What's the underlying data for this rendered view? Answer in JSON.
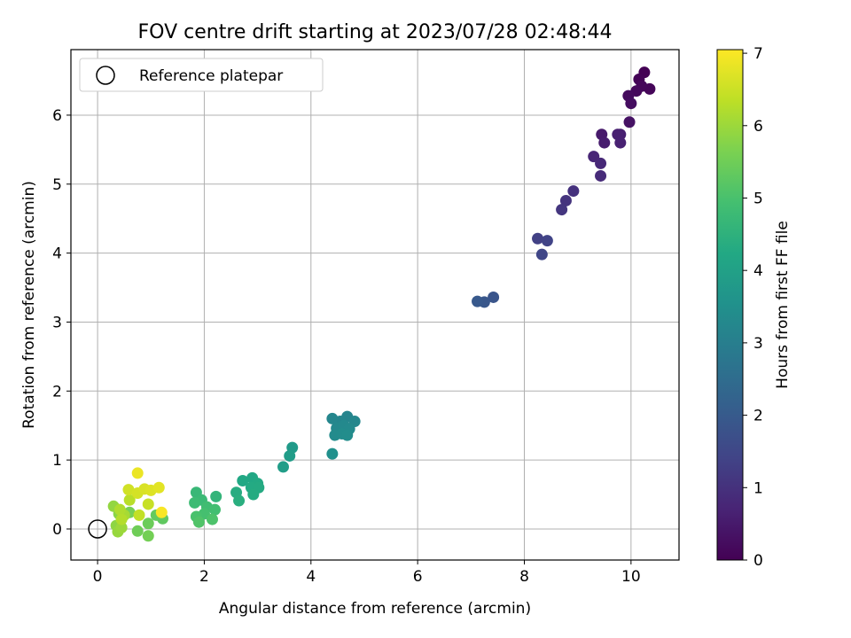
{
  "chart_data": {
    "type": "scatter",
    "title": "FOV centre drift starting at 2023/07/28 02:48:44",
    "xlabel": "Angular distance from reference (arcmin)",
    "ylabel": "Rotation from reference (arcmin)",
    "xlim": [
      -0.5,
      10.9
    ],
    "ylim": [
      -0.45,
      6.95
    ],
    "xticks": [
      0,
      2,
      4,
      6,
      8,
      10
    ],
    "yticks": [
      0,
      1,
      2,
      3,
      4,
      5,
      6
    ],
    "xtick_labels": [
      "0",
      "2",
      "4",
      "6",
      "8",
      "10"
    ],
    "ytick_labels": [
      "0",
      "1",
      "2",
      "3",
      "4",
      "5",
      "6"
    ],
    "grid": true,
    "legend": {
      "placement": "top-left",
      "entries": [
        "Reference platepar"
      ]
    },
    "reference_point": {
      "x": 0,
      "y": 0,
      "label": "Reference platepar"
    },
    "colorbar": {
      "label": "Hours from first FF file",
      "range": [
        0,
        7.05
      ],
      "ticks": [
        0,
        1,
        2,
        3,
        4,
        5,
        6,
        7
      ],
      "tick_labels": [
        "0",
        "1",
        "2",
        "3",
        "4",
        "5",
        "6",
        "7"
      ],
      "colormap": "viridis"
    },
    "series": [
      {
        "points": [
          {
            "x": 10.25,
            "y": 6.62,
            "t": 0.0
          },
          {
            "x": 10.15,
            "y": 6.52,
            "t": 0.05
          },
          {
            "x": 10.35,
            "y": 6.38,
            "t": 0.1
          },
          {
            "x": 10.2,
            "y": 6.42,
            "t": 0.12
          },
          {
            "x": 10.1,
            "y": 6.35,
            "t": 0.15
          },
          {
            "x": 9.95,
            "y": 6.28,
            "t": 0.2
          },
          {
            "x": 10.0,
            "y": 6.17,
            "t": 0.25
          },
          {
            "x": 9.97,
            "y": 5.9,
            "t": 0.35
          },
          {
            "x": 9.45,
            "y": 5.72,
            "t": 0.5
          },
          {
            "x": 9.5,
            "y": 5.6,
            "t": 0.55
          },
          {
            "x": 9.8,
            "y": 5.72,
            "t": 0.6
          },
          {
            "x": 9.75,
            "y": 5.72,
            "t": 0.62
          },
          {
            "x": 9.8,
            "y": 5.6,
            "t": 0.65
          },
          {
            "x": 9.3,
            "y": 5.4,
            "t": 0.75
          },
          {
            "x": 9.43,
            "y": 5.3,
            "t": 0.8
          },
          {
            "x": 9.43,
            "y": 5.12,
            "t": 0.85
          },
          {
            "x": 8.92,
            "y": 4.9,
            "t": 1.0
          },
          {
            "x": 8.78,
            "y": 4.76,
            "t": 1.05
          },
          {
            "x": 8.7,
            "y": 4.63,
            "t": 1.1
          },
          {
            "x": 8.25,
            "y": 4.21,
            "t": 1.35
          },
          {
            "x": 8.43,
            "y": 4.18,
            "t": 1.4
          },
          {
            "x": 8.33,
            "y": 3.98,
            "t": 1.45
          },
          {
            "x": 7.42,
            "y": 3.36,
            "t": 1.85
          },
          {
            "x": 7.25,
            "y": 3.29,
            "t": 1.9
          },
          {
            "x": 7.12,
            "y": 3.3,
            "t": 1.95
          },
          {
            "x": 4.68,
            "y": 1.63,
            "t": 3.15
          },
          {
            "x": 4.55,
            "y": 1.56,
            "t": 3.2
          },
          {
            "x": 4.4,
            "y": 1.6,
            "t": 3.22
          },
          {
            "x": 4.82,
            "y": 1.56,
            "t": 3.25
          },
          {
            "x": 4.48,
            "y": 1.46,
            "t": 3.28
          },
          {
            "x": 4.62,
            "y": 1.5,
            "t": 3.3
          },
          {
            "x": 4.72,
            "y": 1.45,
            "t": 3.32
          },
          {
            "x": 4.45,
            "y": 1.36,
            "t": 3.35
          },
          {
            "x": 4.58,
            "y": 1.38,
            "t": 3.38
          },
          {
            "x": 4.68,
            "y": 1.36,
            "t": 3.4
          },
          {
            "x": 4.4,
            "y": 1.09,
            "t": 3.5
          },
          {
            "x": 3.65,
            "y": 1.18,
            "t": 3.8
          },
          {
            "x": 3.6,
            "y": 1.06,
            "t": 3.85
          },
          {
            "x": 3.48,
            "y": 0.9,
            "t": 3.9
          },
          {
            "x": 2.9,
            "y": 0.74,
            "t": 4.2
          },
          {
            "x": 2.72,
            "y": 0.7,
            "t": 4.22
          },
          {
            "x": 3.0,
            "y": 0.66,
            "t": 4.25
          },
          {
            "x": 2.88,
            "y": 0.6,
            "t": 4.28
          },
          {
            "x": 3.02,
            "y": 0.6,
            "t": 4.3
          },
          {
            "x": 2.92,
            "y": 0.5,
            "t": 4.32
          },
          {
            "x": 2.6,
            "y": 0.53,
            "t": 4.35
          },
          {
            "x": 2.65,
            "y": 0.41,
            "t": 4.4
          },
          {
            "x": 2.22,
            "y": 0.47,
            "t": 4.6
          },
          {
            "x": 1.85,
            "y": 0.53,
            "t": 4.7
          },
          {
            "x": 1.95,
            "y": 0.42,
            "t": 4.75
          },
          {
            "x": 1.82,
            "y": 0.38,
            "t": 4.8
          },
          {
            "x": 2.05,
            "y": 0.32,
            "t": 4.85
          },
          {
            "x": 2.2,
            "y": 0.28,
            "t": 4.9
          },
          {
            "x": 2.0,
            "y": 0.22,
            "t": 4.95
          },
          {
            "x": 1.85,
            "y": 0.18,
            "t": 5.0
          },
          {
            "x": 2.15,
            "y": 0.14,
            "t": 5.05
          },
          {
            "x": 1.9,
            "y": 0.1,
            "t": 5.1
          },
          {
            "x": 1.22,
            "y": 0.15,
            "t": 5.3
          },
          {
            "x": 1.1,
            "y": 0.2,
            "t": 5.35
          },
          {
            "x": 0.95,
            "y": 0.08,
            "t": 5.45
          },
          {
            "x": 0.75,
            "y": -0.03,
            "t": 5.5
          },
          {
            "x": 0.95,
            "y": -0.1,
            "t": 5.55
          },
          {
            "x": 0.6,
            "y": 0.24,
            "t": 5.6
          },
          {
            "x": 0.4,
            "y": 0.22,
            "t": 5.8
          },
          {
            "x": 0.35,
            "y": 0.05,
            "t": 5.85
          },
          {
            "x": 0.3,
            "y": 0.33,
            "t": 5.9
          },
          {
            "x": 0.38,
            "y": -0.04,
            "t": 5.95
          },
          {
            "x": 0.45,
            "y": 0.02,
            "t": 6.0
          },
          {
            "x": 0.5,
            "y": 0.2,
            "t": 6.1
          },
          {
            "x": 0.42,
            "y": 0.28,
            "t": 6.2
          },
          {
            "x": 0.45,
            "y": 0.14,
            "t": 6.25
          },
          {
            "x": 0.6,
            "y": 0.42,
            "t": 6.3
          },
          {
            "x": 0.78,
            "y": 0.2,
            "t": 6.4
          },
          {
            "x": 0.95,
            "y": 0.36,
            "t": 6.45
          },
          {
            "x": 0.58,
            "y": 0.57,
            "t": 6.55
          },
          {
            "x": 0.75,
            "y": 0.52,
            "t": 6.6
          },
          {
            "x": 0.88,
            "y": 0.58,
            "t": 6.65
          },
          {
            "x": 1.0,
            "y": 0.56,
            "t": 6.7
          },
          {
            "x": 1.15,
            "y": 0.6,
            "t": 6.75
          },
          {
            "x": 0.75,
            "y": 0.81,
            "t": 6.85
          },
          {
            "x": 1.2,
            "y": 0.24,
            "t": 7.0
          }
        ]
      }
    ]
  }
}
